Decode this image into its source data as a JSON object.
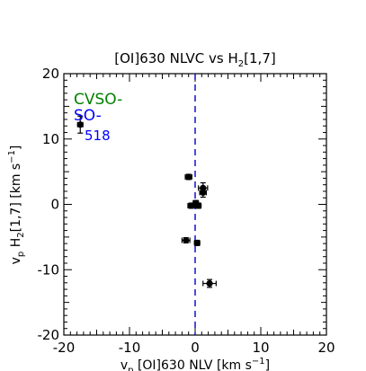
{
  "chart_data": {
    "type": "scatter",
    "title": "[OI]630 NLVC vs H",
    "title_sub": "2",
    "title_tail": "[1,7]",
    "xlabel": {
      "v": "v",
      "sub": "p",
      "text": " [OI]630 NLV [km s",
      "sup": "−1",
      "close": "]"
    },
    "ylabel": {
      "v": "v",
      "sub": "p",
      "mid": " H",
      "sub2": "2",
      "text": "[1,7] [km s",
      "sup": "−1",
      "close": "]"
    },
    "xlim": [
      -20,
      20
    ],
    "ylim": [
      -20,
      20
    ],
    "xticks": [
      -20,
      -10,
      0,
      10,
      20
    ],
    "yticks": [
      -20,
      -10,
      0,
      10,
      20
    ],
    "xtick_labels": [
      "-20",
      "-10",
      "0",
      "10",
      "20"
    ],
    "ytick_labels": [
      "-20",
      "-10",
      "0",
      "10",
      "20"
    ],
    "grid": false,
    "vline_x": 0,
    "annotations": [
      {
        "text": "CVSO-",
        "color": "#008000"
      },
      {
        "text": "SO-",
        "color": "#0000ff"
      },
      {
        "text": "518",
        "color": "#0000ff"
      }
    ],
    "points": [
      {
        "x": -17.5,
        "y": 12.2,
        "xerr": 0.4,
        "yerr": 1.3
      },
      {
        "x": -1.0,
        "y": 4.2,
        "xerr": 0.5,
        "yerr": 0.4
      },
      {
        "x": 1.2,
        "y": 2.5,
        "xerr": 0.7,
        "yerr": 0.8
      },
      {
        "x": 1.2,
        "y": 1.8,
        "xerr": 0.5,
        "yerr": 0.7
      },
      {
        "x": -0.6,
        "y": -0.2,
        "xerr": 0.5,
        "yerr": 0.4
      },
      {
        "x": 0.1,
        "y": 0.2,
        "xerr": 0.4,
        "yerr": 0.4
      },
      {
        "x": 0.5,
        "y": -0.2,
        "xerr": 0.4,
        "yerr": 0.4
      },
      {
        "x": -1.4,
        "y": -5.5,
        "xerr": 0.6,
        "yerr": 0.4
      },
      {
        "x": 0.3,
        "y": -5.9,
        "xerr": 0.4,
        "yerr": 0.4
      },
      {
        "x": 2.2,
        "y": -12.1,
        "xerr": 1.0,
        "yerr": 0.6
      }
    ],
    "colors": {
      "points": "#000000",
      "vline": "#0000cc"
    }
  }
}
